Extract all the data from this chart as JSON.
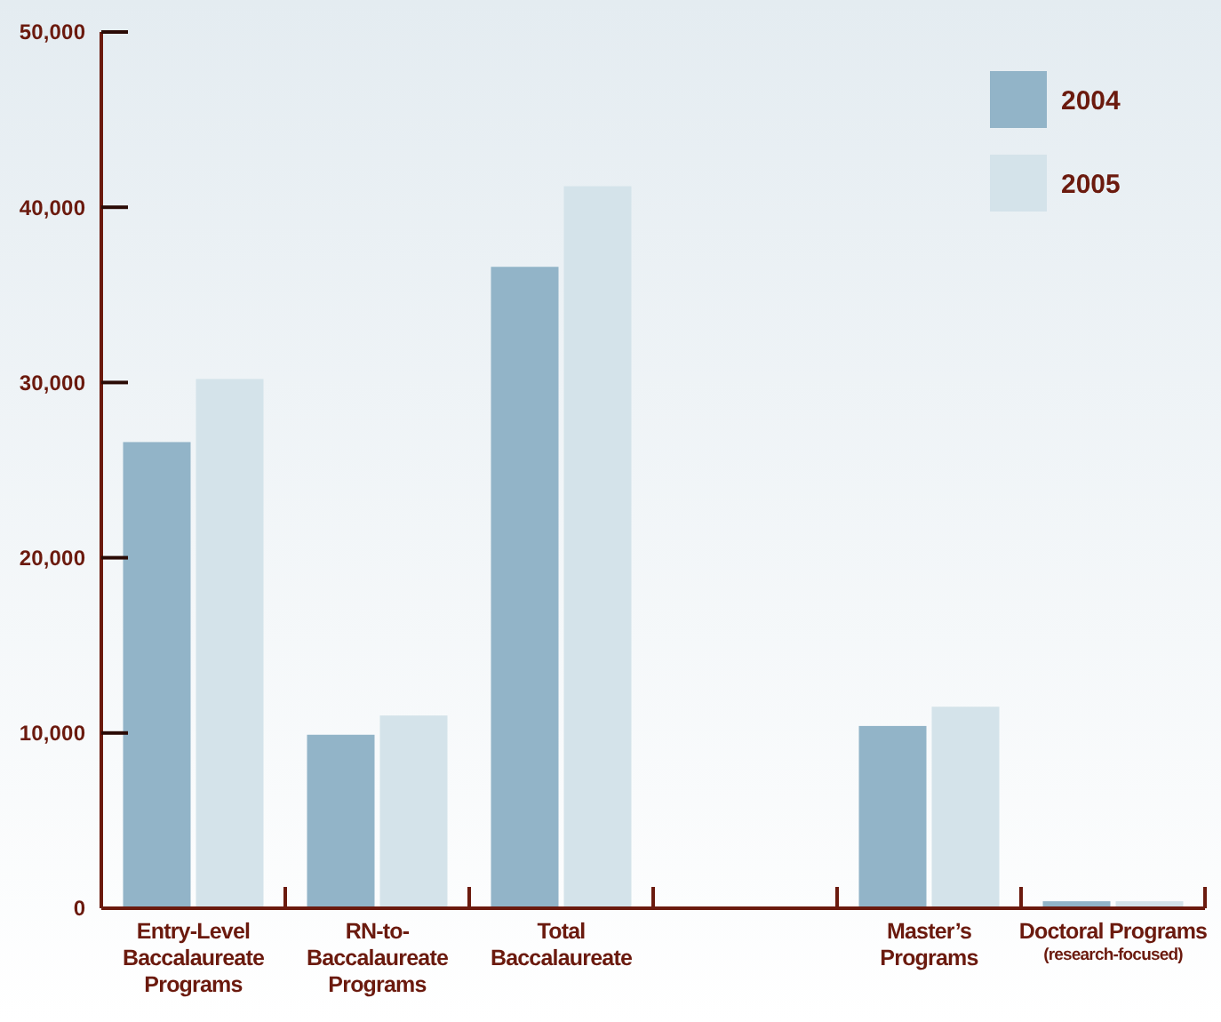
{
  "chart_data": {
    "type": "bar",
    "categories": [
      "Entry-Level\nBaccalaureate\nPrograms",
      "RN-to-\nBaccalaureate\nPrograms",
      "Total\nBaccalaureate",
      null,
      "Master’s\nPrograms",
      "Doctoral  Programs\n(research-focused)"
    ],
    "series": [
      {
        "name": "2004",
        "color": "#92b4c8",
        "values": [
          26600,
          9900,
          36600,
          null,
          10400,
          400
        ]
      },
      {
        "name": "2005",
        "color": "#d4e3ea",
        "values": [
          30200,
          11000,
          41200,
          null,
          11500,
          400
        ]
      }
    ],
    "ylim": [
      0,
      50000
    ],
    "yticks": [
      {
        "value": 0,
        "label": "0"
      },
      {
        "value": 10000,
        "label": "10,000"
      },
      {
        "value": 20000,
        "label": "20,000"
      },
      {
        "value": 30000,
        "label": "30,000"
      },
      {
        "value": 40000,
        "label": "40,000"
      },
      {
        "value": 50000,
        "label": "50,000"
      }
    ],
    "grid": false,
    "legend": "top right"
  }
}
